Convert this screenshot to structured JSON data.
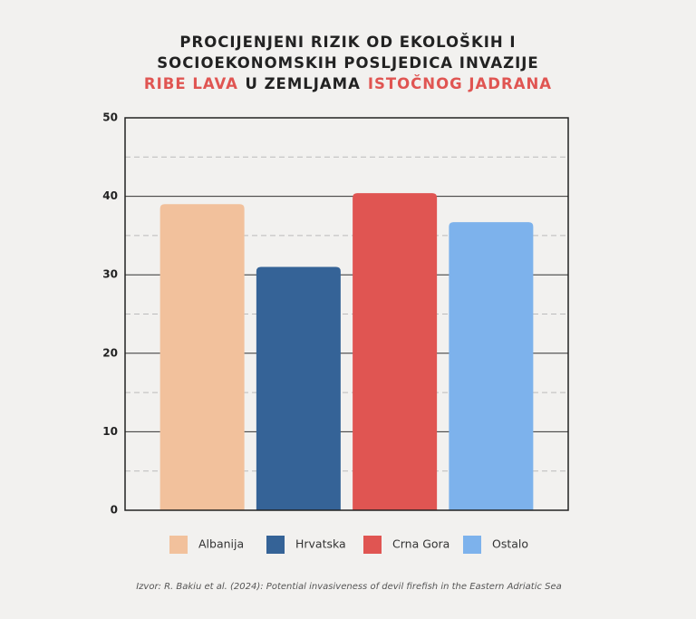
{
  "chart_data": {
    "type": "bar",
    "title_lines": [
      [
        {
          "text": "PROCIJENJENI RIZIK OD EKOLOŠKIH I",
          "color": "#222222"
        }
      ],
      [
        {
          "text": "SOCIOEKONOMSKIH POSLJEDICA INVAZIJE",
          "color": "#222222"
        }
      ],
      [
        {
          "text": "RIBE LAVA",
          "color": "#e05552"
        },
        {
          "text": "U ZEMLJAMA",
          "color": "#222222"
        },
        {
          "text": "ISTOČNOG JADRANA",
          "color": "#e05552"
        }
      ]
    ],
    "series": [
      {
        "name": "Albanija",
        "color": "#f2c19c",
        "values": [
          39
        ]
      },
      {
        "name": "Hrvatska",
        "color": "#356397",
        "values": [
          31
        ]
      },
      {
        "name": "Crna Gora",
        "color": "#e05552",
        "values": [
          40.4
        ]
      },
      {
        "name": "Ostalo",
        "color": "#7db2ec",
        "values": [
          36.7
        ]
      }
    ],
    "ylim": [
      0,
      50
    ],
    "yticks": [
      0,
      10,
      20,
      30,
      40,
      50
    ],
    "minor_yticks": [
      5,
      15,
      25,
      35,
      45
    ],
    "grid": true,
    "legend": "bottom",
    "source": "Izvor: R. Bakiu et al. (2024): Potential invasiveness of devil firefish in the Eastern Adriatic Sea"
  }
}
